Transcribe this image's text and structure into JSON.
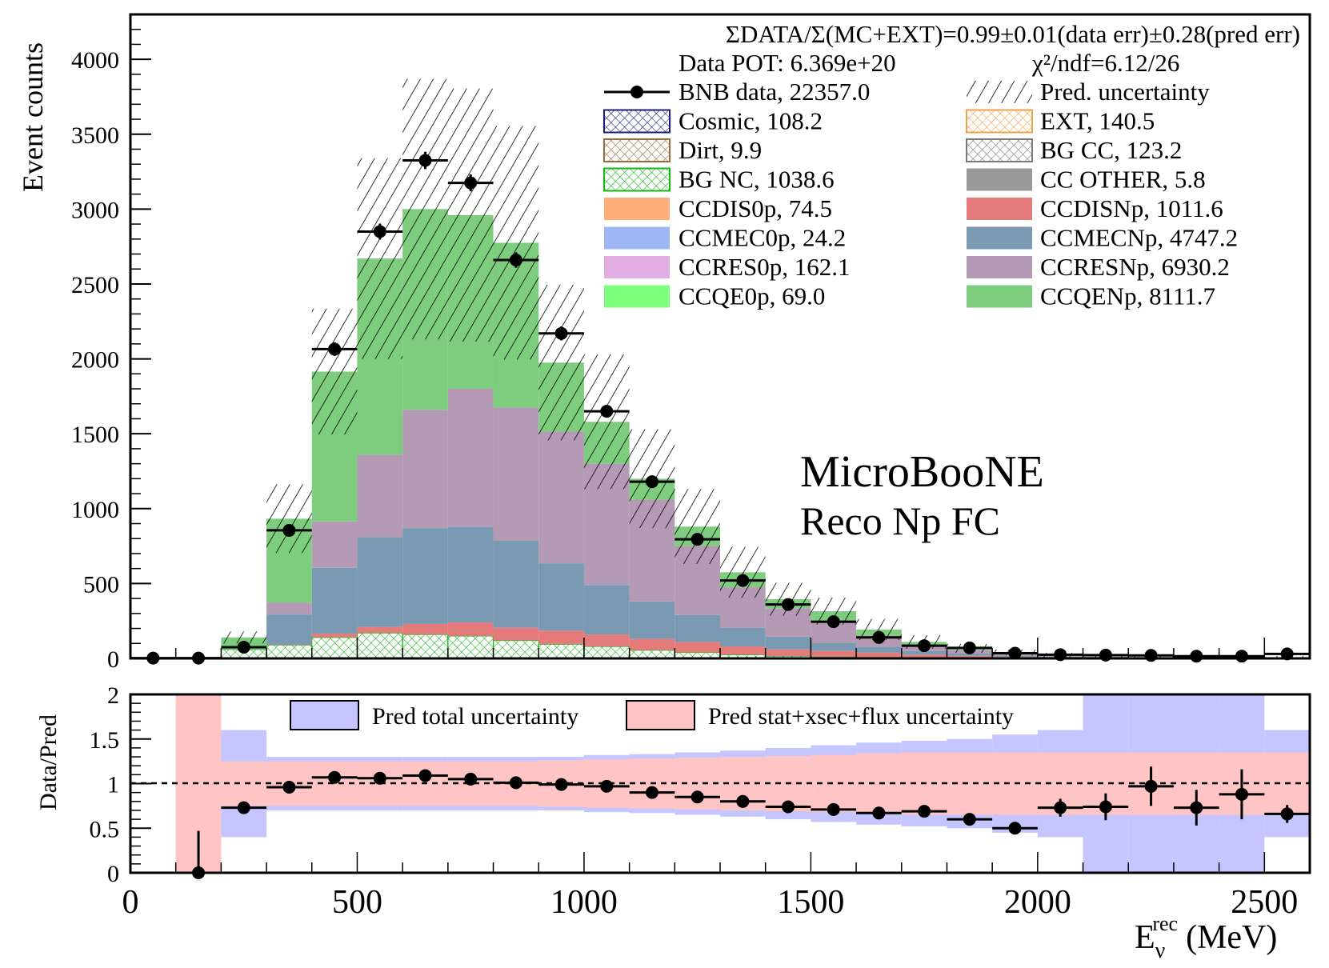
{
  "chart_data": {
    "type": "bar",
    "subtype": "stacked-histogram-with-ratio",
    "top_panel": {
      "ylabel": "Event counts",
      "ylim": [
        0,
        4300
      ],
      "yticks": [
        0,
        500,
        1000,
        1500,
        2000,
        2500,
        3000,
        3500,
        4000
      ],
      "xlim": [
        0,
        2600
      ],
      "bin_width": 100,
      "bin_edges_start": 0,
      "summary_line": "ΣDATA/Σ(MC+EXT)=0.99±0.01(data err)±0.28(pred err)",
      "pot_text": "Data POT: 6.369e+20",
      "chi2_text": "χ²/ndf=6.12/26",
      "annotation_line1": "MicroBooNE",
      "annotation_line2": "Reco Np FC",
      "legend": [
        {
          "label": "BNB data, 22357.0",
          "kind": "data",
          "color": "#000000"
        },
        {
          "label": "Pred. uncertainty",
          "kind": "hatch",
          "color": "#000000"
        },
        {
          "label": "Cosmic, 108.2",
          "kind": "hatch",
          "color": "#1c1c7a"
        },
        {
          "label": "EXT, 140.5",
          "kind": "hatch",
          "color": "#f2a04a"
        },
        {
          "label": "Dirt, 9.9",
          "kind": "hatch",
          "color": "#9b6a3c"
        },
        {
          "label": "BG CC, 123.2",
          "kind": "hatch",
          "color": "#7a7a7a"
        },
        {
          "label": "BG NC, 1038.6",
          "kind": "hatch",
          "color": "#18b418"
        },
        {
          "label": "CC OTHER, 5.8",
          "kind": "fill",
          "color": "#999999"
        },
        {
          "label": "CCDIS0p,  74.5",
          "kind": "fill",
          "color": "#ffae7a"
        },
        {
          "label": "CCDISNp,  1011.6",
          "kind": "fill",
          "color": "#e47a7a"
        },
        {
          "label": "CCMEC0p,  24.2",
          "kind": "fill",
          "color": "#9db7f5"
        },
        {
          "label": "CCMECNp,  4747.2",
          "kind": "fill",
          "color": "#7a9ab4"
        },
        {
          "label": "CCRES0p, 162.1",
          "kind": "fill",
          "color": "#e3aee3"
        },
        {
          "label": "CCRESNp, 6930.2",
          "kind": "fill",
          "color": "#b49ab4"
        },
        {
          "label": "CCQE0p, 69.0",
          "kind": "fill",
          "color": "#7dff7d"
        },
        {
          "label": "CCQENp, 8111.7",
          "kind": "fill",
          "color": "#7ecd7e"
        }
      ],
      "stack_series": [
        {
          "name": "BG NC",
          "color": "#18b418",
          "style": "hatch",
          "values": [
            0,
            0,
            60,
            90,
            140,
            170,
            160,
            150,
            120,
            95,
            80,
            55,
            40,
            25,
            15,
            10,
            8,
            5,
            3,
            2,
            2,
            1,
            1,
            1,
            1,
            1
          ]
        },
        {
          "name": "CCDISNp",
          "color": "#e47a7a",
          "style": "fill",
          "values": [
            0,
            0,
            0,
            3,
            25,
            40,
            70,
            90,
            85,
            90,
            80,
            75,
            70,
            55,
            45,
            40,
            30,
            20,
            14,
            8,
            5,
            3,
            2,
            1,
            1,
            1
          ]
        },
        {
          "name": "CCMECNp",
          "color": "#7a9ab4",
          "style": "fill",
          "values": [
            0,
            0,
            0,
            200,
            440,
            600,
            640,
            640,
            580,
            450,
            330,
            250,
            180,
            125,
            85,
            55,
            40,
            25,
            15,
            10,
            5,
            3,
            2,
            1,
            1,
            1
          ]
        },
        {
          "name": "CCRESNp",
          "color": "#b49ab4",
          "style": "fill",
          "values": [
            0,
            0,
            0,
            80,
            310,
            550,
            790,
            920,
            890,
            880,
            810,
            680,
            460,
            270,
            190,
            150,
            75,
            40,
            25,
            15,
            8,
            5,
            3,
            2,
            1,
            1
          ]
        },
        {
          "name": "CCQENp",
          "color": "#7ecd7e",
          "style": "fill",
          "values": [
            3,
            2,
            80,
            560,
            1000,
            1310,
            1340,
            1160,
            1100,
            460,
            280,
            140,
            130,
            100,
            60,
            60,
            40,
            20,
            10,
            5,
            3,
            2,
            1,
            1,
            1,
            1
          ]
        }
      ],
      "data_points": [
        2,
        2,
        75,
        855,
        2065,
        2850,
        3325,
        3175,
        2660,
        2170,
        1650,
        1180,
        795,
        520,
        360,
        245,
        140,
        85,
        70,
        35,
        25,
        22,
        20,
        15,
        15,
        30
      ],
      "pred_uncertainty_pm": [
        0,
        0,
        40,
        230,
        420,
        670,
        870,
        845,
        780,
        520,
        450,
        330,
        250,
        170,
        110,
        90,
        70,
        45,
        30,
        20,
        15,
        12,
        10,
        8,
        8,
        12
      ]
    },
    "ratio_panel": {
      "ylabel": "Data/Pred",
      "ylim": [
        0,
        2
      ],
      "yticks": [
        "0",
        "0.5",
        "1",
        "1.5",
        "2"
      ],
      "xlabel": "E_ν^rec (MeV)",
      "xlabel_main": "E",
      "xlabel_sub": "ν",
      "xlabel_sup": "rec",
      "xlabel_unit": "(MeV)",
      "xticks": [
        0,
        500,
        1000,
        1500,
        2000,
        2500
      ],
      "reference_line": 1,
      "band_total_label": "Pred total uncertainty",
      "band_stat_label": "Pred stat+xsec+flux uncertainty",
      "band_total_color": "#c5c5ff",
      "band_stat_color": "#ffc5c5",
      "band_total_halfwidth": [
        null,
        1.0,
        0.6,
        0.3,
        0.3,
        0.3,
        0.3,
        0.3,
        0.3,
        0.3,
        0.32,
        0.33,
        0.35,
        0.37,
        0.4,
        0.43,
        0.46,
        0.48,
        0.5,
        0.55,
        0.6,
        1.0,
        1.0,
        1.0,
        1.0,
        0.6
      ],
      "band_stat_halfwidth": [
        null,
        1.0,
        0.25,
        0.25,
        0.25,
        0.25,
        0.25,
        0.25,
        0.25,
        0.26,
        0.27,
        0.28,
        0.29,
        0.3,
        0.31,
        0.32,
        0.34,
        0.35,
        0.35,
        0.35,
        0.35,
        0.35,
        0.35,
        0.35,
        0.35,
        0.35
      ],
      "ratio_values": [
        null,
        0.0,
        0.73,
        0.96,
        1.07,
        1.06,
        1.09,
        1.05,
        1.01,
        0.99,
        0.97,
        0.9,
        0.85,
        0.8,
        0.74,
        0.71,
        0.67,
        0.69,
        0.6,
        0.5,
        0.73,
        0.74,
        0.97,
        0.73,
        0.88,
        0.66
      ],
      "ratio_errors": [
        null,
        0.47,
        0.06,
        0.03,
        0.02,
        0.02,
        0.02,
        0.02,
        0.02,
        0.02,
        0.02,
        0.03,
        0.03,
        0.03,
        0.04,
        0.04,
        0.05,
        0.06,
        0.06,
        0.07,
        0.1,
        0.15,
        0.22,
        0.2,
        0.28,
        0.1
      ]
    }
  }
}
